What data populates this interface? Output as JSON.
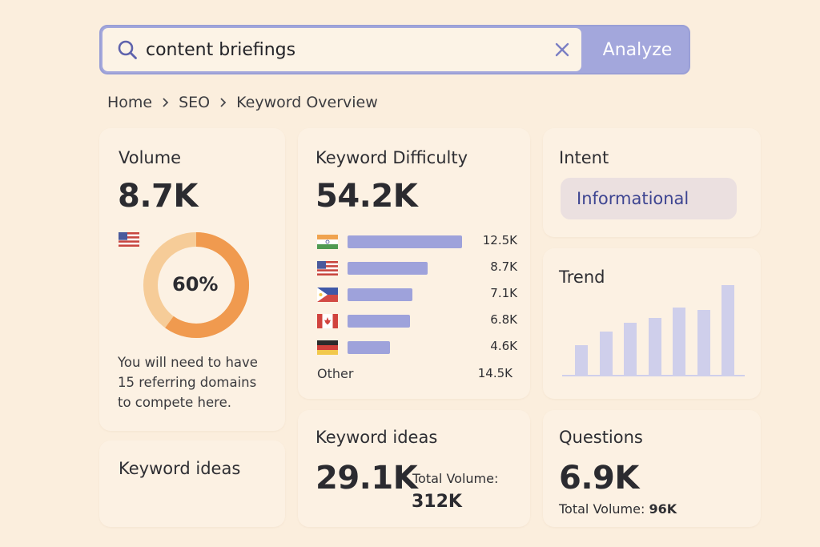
{
  "search": {
    "value": "content briefings",
    "button_label": "Analyze"
  },
  "breadcrumb": [
    "Home",
    "SEO",
    "Keyword Overview"
  ],
  "volume": {
    "title": "Volume",
    "value": "8.7K",
    "percent_label": "60%",
    "percent": 60,
    "description_lines": [
      "You will need to have",
      "15 referring domains",
      "to compete here."
    ]
  },
  "keyword_difficulty": {
    "title": "Keyword Difficulty",
    "value": "54.2K",
    "rows": [
      {
        "country": "India",
        "flag": "india-flag-icon",
        "value": 12.5,
        "label": "12.5K"
      },
      {
        "country": "United States",
        "flag": "us-flag-icon",
        "value": 8.7,
        "label": "8.7K"
      },
      {
        "country": "Philippines",
        "flag": "philippines-flag-icon",
        "value": 7.1,
        "label": "7.1K"
      },
      {
        "country": "Canada",
        "flag": "canada-flag-icon",
        "value": 6.8,
        "label": "6.8K"
      },
      {
        "country": "Germany",
        "flag": "germany-flag-icon",
        "value": 4.6,
        "label": "4.6K"
      }
    ],
    "other_label": "Other",
    "other_value": "14.5K"
  },
  "intent": {
    "title": "Intent",
    "badge": "Informational"
  },
  "trend": {
    "title": "Trend",
    "values": [
      0.33,
      0.48,
      0.58,
      0.63,
      0.75,
      0.72,
      1.0
    ]
  },
  "keyword_ideas_left": {
    "title": "Keyword ideas"
  },
  "keyword_ideas": {
    "title": "Keyword ideas",
    "value": "29.1K",
    "total_label": "Total Volume:",
    "total_value": "312K"
  },
  "questions": {
    "title": "Questions",
    "value": "6.9K",
    "total_label": "Total Volume:",
    "total_value": "96K"
  },
  "colors": {
    "accent": "#a3a7dc",
    "donut_fill": "#f09a4f",
    "donut_rest": "#f6cc98",
    "bar": "#9ea2db",
    "trend_bar": "#cfcfeb",
    "background": "#fbeedd",
    "card": "#fcf1e3"
  }
}
